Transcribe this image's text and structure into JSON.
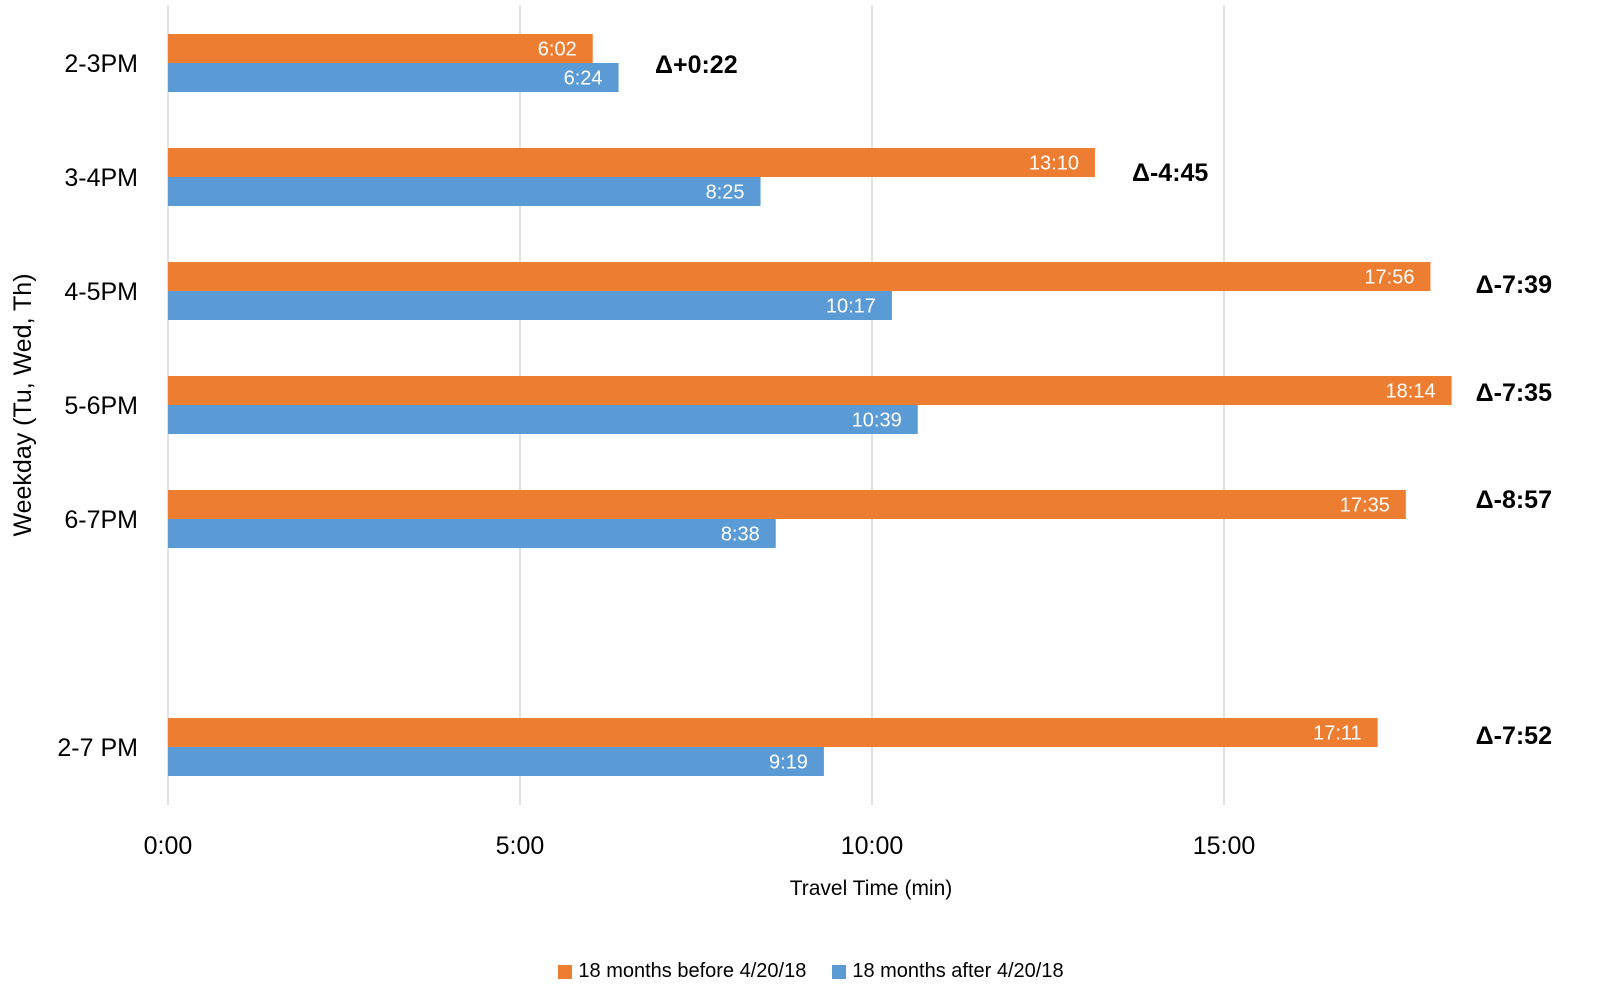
{
  "chart_data": {
    "type": "bar",
    "orientation": "horizontal",
    "title": "",
    "xlabel": "Travel Time (min)",
    "ylabel": "Weekday (Tu, Wed, Th)",
    "xlim_minutes": [
      0,
      18.5
    ],
    "x_ticks": [
      {
        "value": 0,
        "label": "0:00"
      },
      {
        "value": 5,
        "label": "5:00"
      },
      {
        "value": 10,
        "label": "10:00"
      },
      {
        "value": 15,
        "label": "15:00"
      }
    ],
    "grid": "vertical",
    "legend_position": "bottom",
    "categories": [
      "2-3PM",
      "3-4PM",
      "4-5PM",
      "5-6PM",
      "6-7PM",
      "2-7 PM"
    ],
    "series": [
      {
        "name": "18 months before 4/20/18",
        "color": "#ED7D31",
        "values_minutes": [
          6.033,
          13.167,
          17.933,
          18.233,
          17.583,
          17.183
        ],
        "labels": [
          "6:02",
          "13:10",
          "17:56",
          "18:14",
          "17:35",
          "17:11"
        ]
      },
      {
        "name": "18 months after 4/20/18",
        "color": "#5B9BD5",
        "values_minutes": [
          6.4,
          8.417,
          10.283,
          10.65,
          8.633,
          9.317
        ],
        "labels": [
          "6:24",
          "8:25",
          "10:17",
          "10:39",
          "8:38",
          "9:19"
        ]
      }
    ],
    "annotations": [
      "Δ+0:22",
      "Δ-4:45",
      "Δ-7:39",
      "Δ-7:35",
      "Δ-8:57",
      "Δ-7:52"
    ]
  },
  "colors": {
    "grid": "#D9D9D9",
    "text": "#000000",
    "bar_label": "#FFFFFF"
  }
}
